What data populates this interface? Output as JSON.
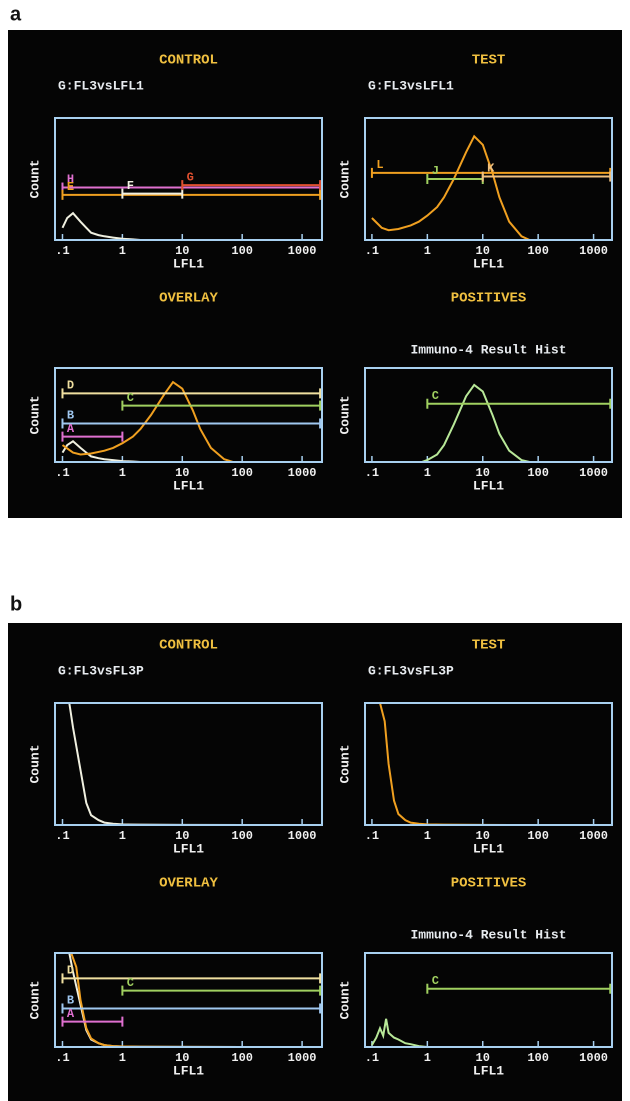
{
  "figure_labels": [
    "a",
    "b"
  ],
  "chart_data": [
    {
      "type": "line",
      "title": "CONTROL",
      "subtitle": "G:FL3vsLFL1",
      "xlabel": "LFL1",
      "ylabel": "Count",
      "xscale": "log",
      "xlim": [
        0.075,
        2150
      ],
      "xticks": [
        {
          "value": 0.1,
          "label": ".1"
        },
        1,
        10,
        100,
        1000
      ],
      "ylim": [
        0,
        100
      ],
      "series": [
        {
          "color": "#f0f0e0",
          "x": [
            0.1,
            0.12,
            0.15,
            0.2,
            0.25,
            0.3,
            0.4,
            0.5,
            0.7,
            1,
            1.5,
            2
          ],
          "values": [
            10,
            18,
            22,
            15,
            10,
            6,
            4,
            3,
            2,
            1,
            0.5,
            0
          ]
        }
      ],
      "markers": [
        {
          "label": "H",
          "color": "#e070d0",
          "x0": 0.1,
          "x1": 2000,
          "y": 43
        },
        {
          "label": "E",
          "color": "#f0a020",
          "x0": 0.1,
          "x1": 2000,
          "y": 37
        },
        {
          "label": "F",
          "color": "#f0f0e0",
          "x0": 1,
          "x1": 10,
          "y": 38
        },
        {
          "label": "G",
          "color": "#e05030",
          "x0": 10,
          "x1": 2000,
          "y": 45
        }
      ]
    },
    {
      "type": "line",
      "title": "TEST",
      "subtitle": "G:FL3vsLFL1",
      "xlabel": "LFL1",
      "ylabel": "Count",
      "xscale": "log",
      "xlim": [
        0.075,
        2150
      ],
      "xticks": [
        {
          "value": 0.1,
          "label": ".1"
        },
        1,
        10,
        100,
        1000
      ],
      "ylim": [
        0,
        100
      ],
      "series": [
        {
          "color": "#f0a020",
          "x": [
            0.1,
            0.15,
            0.2,
            0.3,
            0.5,
            0.7,
            1,
            1.5,
            2,
            3,
            5,
            7,
            10,
            15,
            20,
            30,
            50,
            70
          ],
          "values": [
            18,
            10,
            8,
            9,
            12,
            15,
            20,
            27,
            35,
            50,
            72,
            85,
            78,
            55,
            35,
            15,
            3,
            0
          ]
        }
      ],
      "markers": [
        {
          "label": "L",
          "color": "#f0a020",
          "x0": 0.1,
          "x1": 2000,
          "y": 55
        },
        {
          "label": "J",
          "color": "#a0d060",
          "x0": 1,
          "x1": 10,
          "y": 50
        },
        {
          "label": "K",
          "color": "#f0c080",
          "x0": 10,
          "x1": 2000,
          "y": 52
        }
      ]
    },
    {
      "type": "line",
      "title": "OVERLAY",
      "xlabel": "LFL1",
      "ylabel": "Count",
      "xscale": "log",
      "xlim": [
        0.075,
        2150
      ],
      "xticks": [
        {
          "value": 0.1,
          "label": ".1"
        },
        1,
        10,
        100,
        1000
      ],
      "ylim": [
        0,
        100
      ],
      "series": [
        {
          "color": "#f0f0e0",
          "x": [
            0.1,
            0.12,
            0.15,
            0.2,
            0.25,
            0.3,
            0.4,
            0.5,
            0.7,
            1,
            1.5,
            2
          ],
          "values": [
            10,
            18,
            22,
            15,
            10,
            6,
            4,
            3,
            2,
            1,
            0.5,
            0
          ]
        },
        {
          "color": "#f0a020",
          "x": [
            0.1,
            0.15,
            0.2,
            0.3,
            0.5,
            0.7,
            1,
            1.5,
            2,
            3,
            5,
            7,
            10,
            15,
            20,
            30,
            50,
            70
          ],
          "values": [
            18,
            10,
            8,
            9,
            12,
            15,
            20,
            27,
            35,
            50,
            72,
            85,
            78,
            55,
            35,
            15,
            3,
            0
          ]
        }
      ],
      "markers": [
        {
          "label": "D",
          "color": "#f0e0a0",
          "x0": 0.1,
          "x1": 2000,
          "y": 73
        },
        {
          "label": "C",
          "color": "#a0d060",
          "x0": 1,
          "x1": 2000,
          "y": 60
        },
        {
          "label": "B",
          "color": "#a0c8f0",
          "x0": 0.1,
          "x1": 2000,
          "y": 41
        },
        {
          "label": "A",
          "color": "#e070d0",
          "x0": 0.1,
          "x1": 1,
          "y": 27
        }
      ]
    },
    {
      "type": "line",
      "title": "POSITIVES",
      "subtitle": "Immuno-4 Result Hist",
      "xlabel": "LFL1",
      "ylabel": "Count",
      "xscale": "log",
      "xlim": [
        0.075,
        2150
      ],
      "xticks": [
        {
          "value": 0.1,
          "label": ".1"
        },
        1,
        10,
        100,
        1000
      ],
      "ylim": [
        0,
        100
      ],
      "series": [
        {
          "color": "#b8e898",
          "x": [
            0.8,
            1,
            1.5,
            2,
            3,
            5,
            7,
            10,
            15,
            20,
            30,
            50,
            70
          ],
          "values": [
            0,
            2,
            8,
            18,
            40,
            70,
            82,
            75,
            50,
            30,
            12,
            2,
            0
          ]
        }
      ],
      "markers": [
        {
          "label": "C",
          "color": "#a0d060",
          "x0": 1,
          "x1": 2000,
          "y": 62
        }
      ]
    },
    {
      "type": "line",
      "title": "CONTROL",
      "subtitle": "G:FL3vsFL3P",
      "xlabel": "LFL1",
      "ylabel": "Count",
      "xscale": "log",
      "xlim": [
        0.075,
        2150
      ],
      "xticks": [
        {
          "value": 0.1,
          "label": ".1"
        },
        1,
        10,
        100,
        1000
      ],
      "ylim": [
        0,
        100
      ],
      "series": [
        {
          "color": "#f0f0e0",
          "x": [
            0.1,
            0.13,
            0.15,
            0.2,
            0.25,
            0.3,
            0.4,
            0.5,
            0.7,
            1,
            2,
            10,
            100,
            2000
          ],
          "values": [
            100,
            100,
            80,
            45,
            18,
            8,
            4,
            2,
            1,
            0.5,
            0.3,
            0.1,
            0,
            0
          ]
        }
      ],
      "markers": []
    },
    {
      "type": "line",
      "title": "TEST",
      "subtitle": "G:FL3vsFL3P",
      "xlabel": "LFL1",
      "ylabel": "Count",
      "xscale": "log",
      "xlim": [
        0.075,
        2150
      ],
      "xticks": [
        {
          "value": 0.1,
          "label": ".1"
        },
        1,
        10,
        100,
        1000
      ],
      "ylim": [
        0,
        100
      ],
      "series": [
        {
          "color": "#f0a020",
          "x": [
            0.1,
            0.14,
            0.17,
            0.2,
            0.25,
            0.3,
            0.4,
            0.5,
            0.7,
            1,
            2,
            10,
            100,
            2000
          ],
          "values": [
            100,
            100,
            85,
            50,
            20,
            9,
            4,
            2,
            1,
            0.5,
            0.3,
            0.1,
            0,
            0
          ]
        }
      ],
      "markers": []
    },
    {
      "type": "line",
      "title": "OVERLAY",
      "xlabel": "LFL1",
      "ylabel": "Count",
      "xscale": "log",
      "xlim": [
        0.075,
        2150
      ],
      "xticks": [
        {
          "value": 0.1,
          "label": ".1"
        },
        1,
        10,
        100,
        1000
      ],
      "ylim": [
        0,
        100
      ],
      "series": [
        {
          "color": "#f0f0e0",
          "x": [
            0.1,
            0.13,
            0.15,
            0.2,
            0.25,
            0.3,
            0.4,
            0.5,
            0.7,
            1,
            2,
            10,
            100,
            2000
          ],
          "values": [
            100,
            100,
            80,
            45,
            18,
            8,
            4,
            2,
            1,
            0.5,
            0.3,
            0.1,
            0,
            0
          ]
        },
        {
          "color": "#f0a020",
          "x": [
            0.1,
            0.14,
            0.17,
            0.2,
            0.25,
            0.3,
            0.4,
            0.5,
            0.7,
            1,
            2,
            10,
            100,
            2000
          ],
          "values": [
            100,
            100,
            85,
            50,
            20,
            9,
            4,
            2,
            1,
            0.5,
            0.3,
            0.1,
            0,
            0
          ]
        }
      ],
      "markers": [
        {
          "label": "D",
          "color": "#f0e0a0",
          "x0": 0.1,
          "x1": 2000,
          "y": 73
        },
        {
          "label": "C",
          "color": "#a0d060",
          "x0": 1,
          "x1": 2000,
          "y": 60
        },
        {
          "label": "B",
          "color": "#a0c8f0",
          "x0": 0.1,
          "x1": 2000,
          "y": 41
        },
        {
          "label": "A",
          "color": "#e070d0",
          "x0": 0.1,
          "x1": 1,
          "y": 27
        }
      ]
    },
    {
      "type": "line",
      "title": "POSITIVES",
      "subtitle": "Immuno-4 Result Hist",
      "xlabel": "LFL1",
      "ylabel": "Count",
      "xscale": "log",
      "xlim": [
        0.075,
        2150
      ],
      "xticks": [
        {
          "value": 0.1,
          "label": ".1"
        },
        1,
        10,
        100,
        1000
      ],
      "ylim": [
        0,
        100
      ],
      "series": [
        {
          "color": "#b8e898",
          "x": [
            0.1,
            0.12,
            0.14,
            0.16,
            0.18,
            0.2,
            0.25,
            0.3,
            0.4,
            0.5,
            0.7,
            1
          ],
          "values": [
            2,
            10,
            20,
            12,
            30,
            15,
            10,
            8,
            4,
            3,
            1,
            0
          ]
        }
      ],
      "markers": [
        {
          "label": "C",
          "color": "#a0d060",
          "x0": 1,
          "x1": 2000,
          "y": 62
        }
      ]
    }
  ]
}
